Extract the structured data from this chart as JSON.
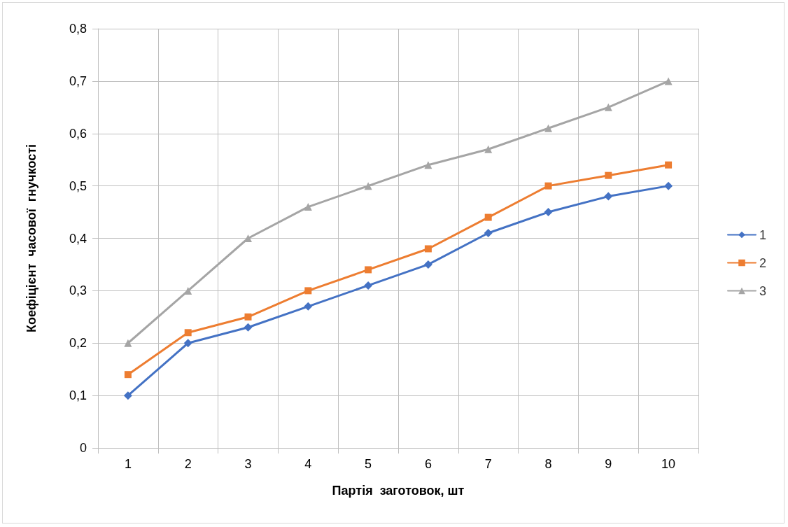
{
  "chart_data": {
    "type": "line",
    "xlabel": "Партія  заготовок, шт",
    "ylabel": "Коефіцієнт  часової  гнучкості",
    "categories": [
      "1",
      "2",
      "3",
      "4",
      "5",
      "6",
      "7",
      "8",
      "9",
      "10"
    ],
    "series": [
      {
        "name": "1",
        "color": "#4472c4",
        "marker": "diamond",
        "values": [
          0.1,
          0.2,
          0.23,
          0.27,
          0.31,
          0.35,
          0.41,
          0.45,
          0.48,
          0.5
        ]
      },
      {
        "name": "2",
        "color": "#ed7d31",
        "marker": "square",
        "values": [
          0.14,
          0.22,
          0.25,
          0.3,
          0.34,
          0.38,
          0.44,
          0.5,
          0.52,
          0.54
        ]
      },
      {
        "name": "3",
        "color": "#a5a5a5",
        "marker": "triangle",
        "values": [
          0.2,
          0.3,
          0.4,
          0.46,
          0.5,
          0.54,
          0.57,
          0.61,
          0.65,
          0.7
        ]
      }
    ],
    "ylim": [
      0,
      0.8
    ],
    "yticks": [
      0,
      {
        "value": 0.1,
        "label": "0,1"
      },
      {
        "value": 0.2,
        "label": "0,2"
      },
      {
        "value": 0.3,
        "label": "0,3"
      },
      {
        "value": 0.4,
        "label": "0,4"
      },
      {
        "value": 0.5,
        "label": "0,5"
      },
      {
        "value": 0.6,
        "label": "0,6"
      },
      {
        "value": 0.7,
        "label": "0,7"
      },
      {
        "value": 0.8,
        "label": "0,8"
      }
    ],
    "grid": true,
    "legend": "right",
    "line_style": "solid"
  }
}
